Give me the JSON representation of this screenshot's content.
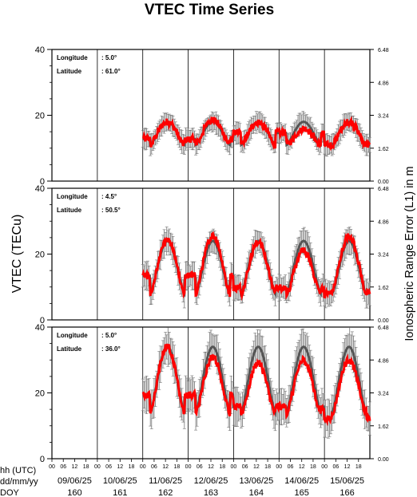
{
  "chart_data": {
    "type": "line",
    "title": "VTEC Time Series",
    "ylabel_left": "VTEC (TECu)",
    "ylabel_right": "Ionospheric Range Error (L1) in m",
    "ylim": [
      0,
      40
    ],
    "yticks": [
      "0",
      "20",
      "40"
    ],
    "right_ylim": [
      0,
      6.48
    ],
    "right_yticks": [
      "0.00",
      "1.62",
      "3.24",
      "4.86",
      "6.48"
    ],
    "x_row_labels": [
      "hh (UTC)",
      "dd/mm/yy",
      "DOY"
    ],
    "hour_ticks": [
      "00",
      "06",
      "12",
      "18"
    ],
    "days": [
      {
        "date": "09/06/25",
        "doy": "160"
      },
      {
        "date": "10/06/25",
        "doy": "161"
      },
      {
        "date": "11/06/25",
        "doy": "162"
      },
      {
        "date": "12/06/25",
        "doy": "163"
      },
      {
        "date": "13/06/25",
        "doy": "164"
      },
      {
        "date": "14/06/25",
        "doy": "165"
      },
      {
        "date": "15/06/25",
        "doy": "166"
      }
    ],
    "data_start_day": 2,
    "panel_labels": {
      "longitude": "Longitude",
      "latitude": "Latitude"
    },
    "panels": [
      {
        "longitude": ":   5.0°",
        "latitude": ": 61.0°",
        "day_min": 11,
        "day_max": 18,
        "peak_hour": 13,
        "night": [
          [
            0,
            13
          ],
          [
            2,
            15
          ],
          [
            4,
            11
          ],
          [
            6,
            14
          ]
        ],
        "red_offsets": [
          0,
          0.6,
          0,
          -2,
          0,
          0.7,
          1.5
        ],
        "errband": 3.5
      },
      {
        "longitude": ":   4.5°",
        "latitude": ": 50.5°",
        "day_min": 8,
        "day_max": 24,
        "peak_hour": 13,
        "night": [
          [
            0,
            14
          ],
          [
            2,
            10
          ],
          [
            4,
            8
          ],
          [
            6,
            16
          ]
        ],
        "red_offsets": [
          0,
          1.5,
          -0.5,
          -3,
          1.5,
          -4,
          -1
        ],
        "errband": 4.5
      },
      {
        "longitude": ":   5.0°",
        "latitude": ": 36.0°",
        "day_min": 14,
        "day_max": 34,
        "peak_hour": 12,
        "night": [
          [
            0,
            20
          ],
          [
            2,
            16
          ],
          [
            4,
            12
          ],
          [
            6,
            18
          ]
        ],
        "red_offsets": [
          0,
          -3,
          -5,
          -4,
          -4,
          -5,
          -2
        ],
        "errband": 6
      }
    ],
    "series": [
      {
        "color": "#ff0000"
      },
      {
        "color": "#555555"
      }
    ]
  }
}
